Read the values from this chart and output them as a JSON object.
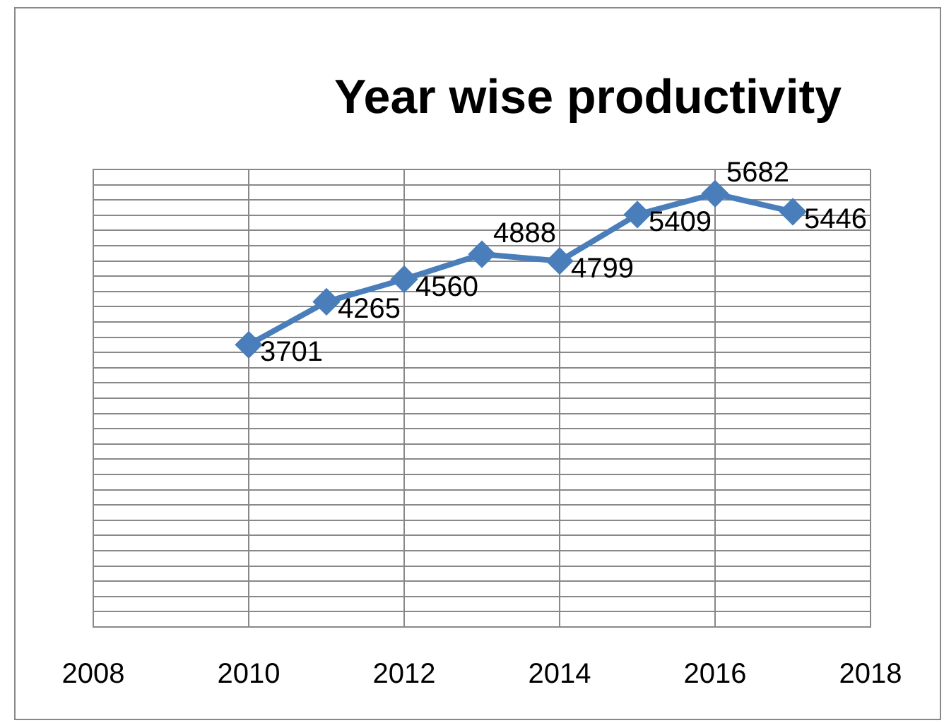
{
  "chart_data": {
    "type": "line",
    "title": "Year wise productivity",
    "x": [
      2010,
      2011,
      2012,
      2013,
      2014,
      2015,
      2016,
      2017
    ],
    "series": [
      {
        "color": "#4a7ebb",
        "values": [
          3701,
          4265,
          4560,
          4888,
          4799,
          5409,
          5682,
          5446
        ]
      }
    ],
    "xlim": [
      2008,
      2018
    ],
    "xticks": [
      2008,
      2010,
      2012,
      2014,
      2016,
      2018
    ],
    "ylim": [
      0,
      6000
    ],
    "yticks": [
      {
        "value": 0,
        "label": null
      },
      {
        "value": 200,
        "label": null
      },
      {
        "value": 400,
        "label": null
      },
      {
        "value": 600,
        "label": null
      },
      {
        "value": 800,
        "label": null
      },
      {
        "value": 1000,
        "label": null
      },
      {
        "value": 1200,
        "label": null
      },
      {
        "value": 1400,
        "label": null
      },
      {
        "value": 1600,
        "label": null
      },
      {
        "value": 1800,
        "label": null
      },
      {
        "value": 2000,
        "label": null
      },
      {
        "value": 2200,
        "label": null
      },
      {
        "value": 2400,
        "label": null
      },
      {
        "value": 2600,
        "label": null
      },
      {
        "value": 2800,
        "label": null
      },
      {
        "value": 3000,
        "label": null
      },
      {
        "value": 3200,
        "label": null
      },
      {
        "value": 3400,
        "label": null
      },
      {
        "value": 3600,
        "label": null
      },
      {
        "value": 3800,
        "label": null
      },
      {
        "value": 4000,
        "label": null
      },
      {
        "value": 4200,
        "label": null
      },
      {
        "value": 4400,
        "label": null
      },
      {
        "value": 4600,
        "label": null
      },
      {
        "value": 4800,
        "label": null
      },
      {
        "value": 5000,
        "label": null
      },
      {
        "value": 5200,
        "label": null
      },
      {
        "value": 5400,
        "label": null
      },
      {
        "value": 5600,
        "label": null
      },
      {
        "value": 5800,
        "label": null
      },
      {
        "value": 6000,
        "label": null
      }
    ],
    "tick_labels": "x",
    "grid": true,
    "marker": "diamond",
    "line_style": "solid",
    "data_labels": true,
    "legend": false
  }
}
